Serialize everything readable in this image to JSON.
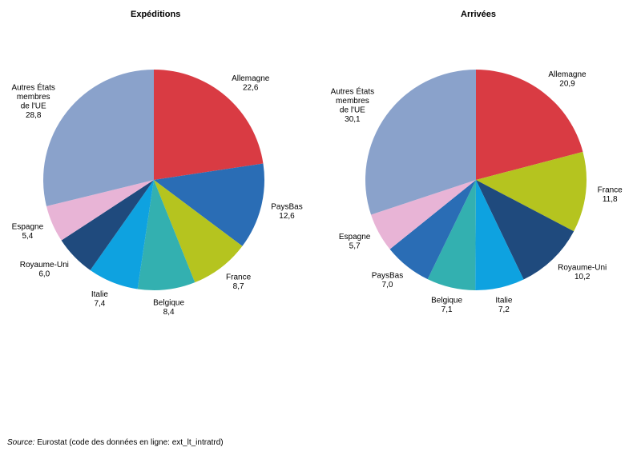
{
  "chart_data": [
    {
      "type": "pie",
      "title": "Expéditions",
      "slices": [
        {
          "name": "Allemagne",
          "value_label": "22,6",
          "value": 22.6,
          "color": "#d93b43"
        },
        {
          "name": "PaysBas",
          "value_label": "12,6",
          "value": 12.6,
          "color": "#2a6db5"
        },
        {
          "name": "France",
          "value_label": "8,7",
          "value": 8.7,
          "color": "#b5c41f"
        },
        {
          "name": "Belgique",
          "value_label": "8,4",
          "value": 8.4,
          "color": "#33b0b0"
        },
        {
          "name": "Italie",
          "value_label": "7,4",
          "value": 7.4,
          "color": "#0ea2e0"
        },
        {
          "name": "Royaume-Uni",
          "value_label": "6,0",
          "value": 6.0,
          "color": "#1f4a7d"
        },
        {
          "name": "Espagne",
          "value_label": "5,4",
          "value": 5.4,
          "color": "#e8b4d6"
        },
        {
          "name": "Autres États membres de l'UE",
          "value_label": "28,8",
          "value": 28.8,
          "color": "#8aa2cb"
        }
      ]
    },
    {
      "type": "pie",
      "title": "Arrivées",
      "slices": [
        {
          "name": "Allemagne",
          "value_label": "20,9",
          "value": 20.9,
          "color": "#d93b43"
        },
        {
          "name": "France",
          "value_label": "11,8",
          "value": 11.8,
          "color": "#b5c41f"
        },
        {
          "name": "Royaume-Uni",
          "value_label": "10,2",
          "value": 10.2,
          "color": "#1f4a7d"
        },
        {
          "name": "Italie",
          "value_label": "7,2",
          "value": 7.2,
          "color": "#0ea2e0"
        },
        {
          "name": "Belgique",
          "value_label": "7,1",
          "value": 7.1,
          "color": "#33b0b0"
        },
        {
          "name": "PaysBas",
          "value_label": "7,0",
          "value": 7.0,
          "color": "#2a6db5"
        },
        {
          "name": "Espagne",
          "value_label": "5,7",
          "value": 5.7,
          "color": "#e8b4d6"
        },
        {
          "name": "Autres États membres de l'UE",
          "value_label": "30,1",
          "value": 30.1,
          "color": "#8aa2cb"
        }
      ]
    }
  ],
  "source": {
    "label": "Source:",
    "text": "Eurostat (code des données en ligne: ext_lt_intratrd)"
  }
}
